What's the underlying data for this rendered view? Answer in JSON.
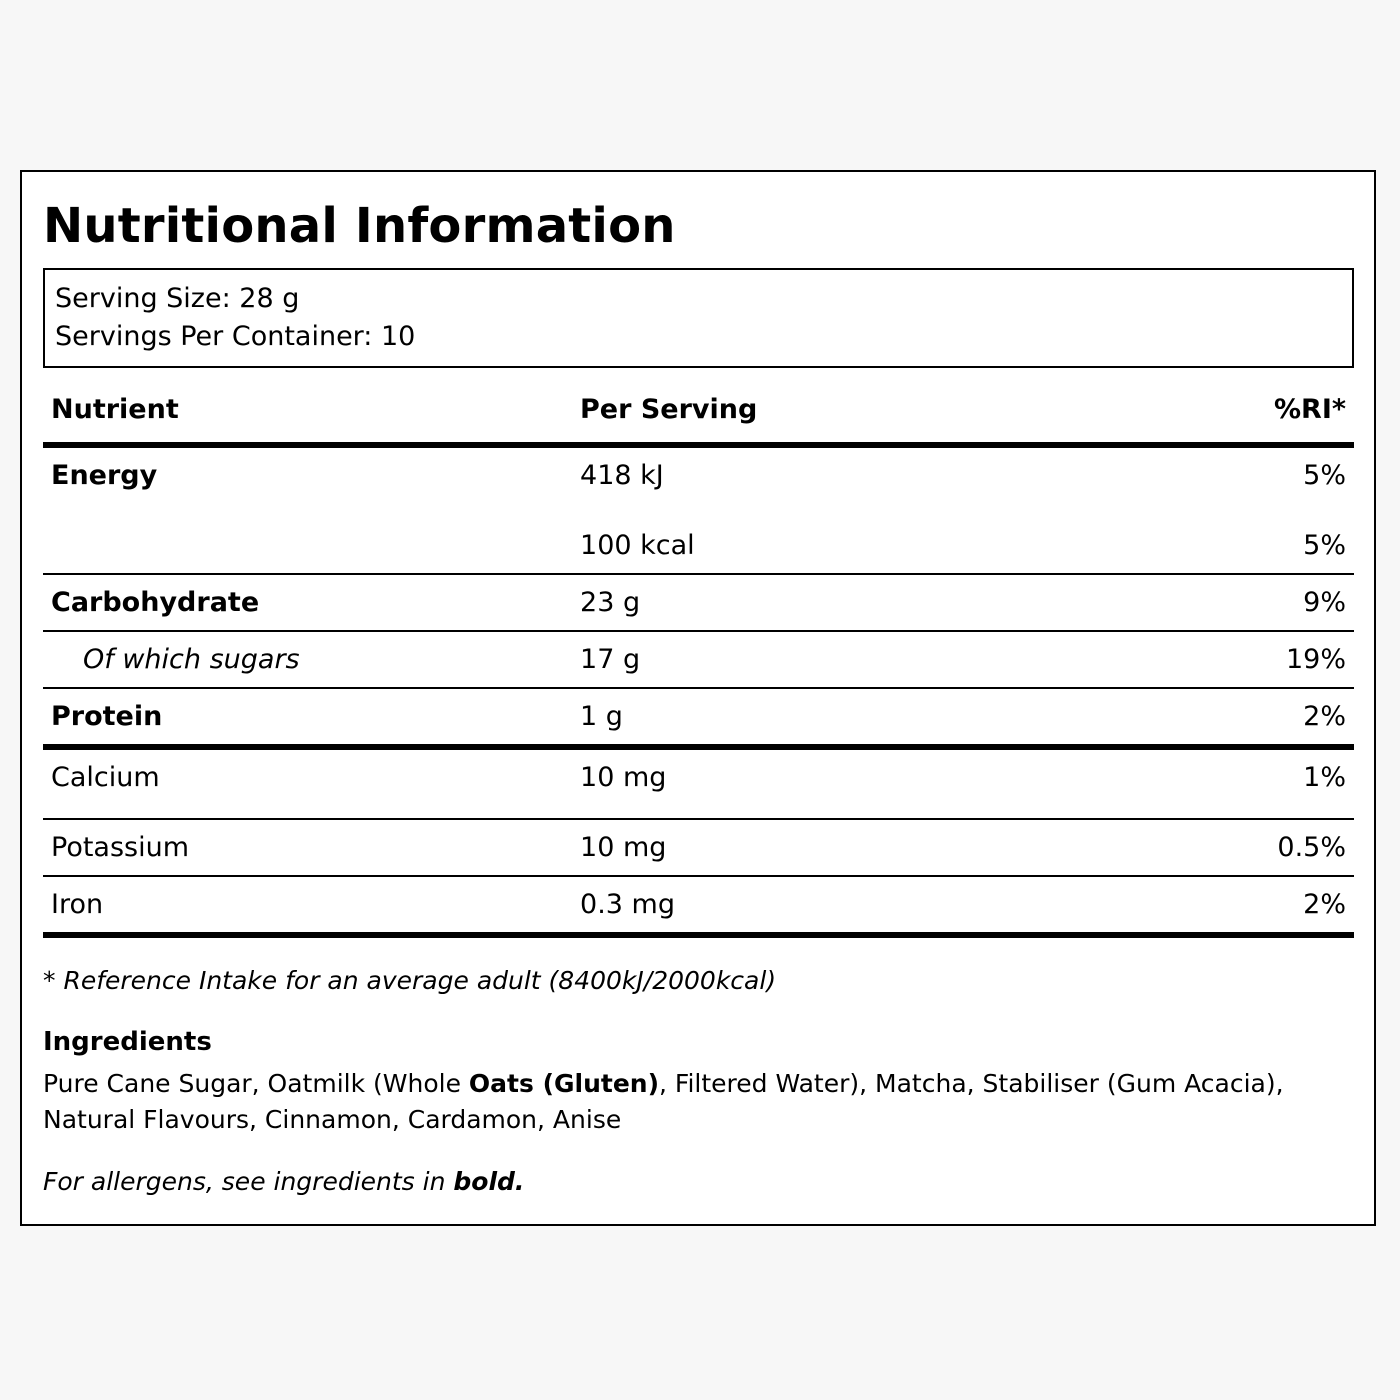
{
  "title": "Nutritional Information",
  "serving": {
    "size": "Serving Size: 28 g",
    "per_container": "Servings Per Container: 10"
  },
  "table": {
    "headers": {
      "nutrient": "Nutrient",
      "per_serving": "Per Serving",
      "ri": "%RI*"
    },
    "rows": [
      {
        "name": "Energy",
        "value": "418 kJ",
        "ri": "5%"
      },
      {
        "name": "",
        "value": "100 kcal",
        "ri": "5%"
      },
      {
        "name": "Carbohydrate",
        "value": "23 g",
        "ri": "9%"
      },
      {
        "name": "Of which sugars",
        "value": "17 g",
        "ri": "19%"
      },
      {
        "name": "Protein",
        "value": "1 g",
        "ri": "2%"
      },
      {
        "name": "Calcium",
        "value": "10 mg",
        "ri": "1%"
      },
      {
        "name": "Potassium",
        "value": "10 mg",
        "ri": "0.5%"
      },
      {
        "name": "Iron",
        "value": "0.3 mg",
        "ri": "2%"
      }
    ]
  },
  "footnote": "* Reference Intake for an average adult (8400kJ/2000kcal)",
  "ingredients": {
    "title": "Ingredients",
    "text_before": "Pure Cane Sugar, Oatmilk (Whole ",
    "allergen": "Oats (Gluten)",
    "text_after": ", Filtered Water), Matcha, Stabiliser (Gum Acacia), Natural Flavours, Cinnamon, Cardamon, Anise"
  },
  "allergen_note": {
    "text": "For allergens, see ingredients in ",
    "bold": "bold."
  }
}
